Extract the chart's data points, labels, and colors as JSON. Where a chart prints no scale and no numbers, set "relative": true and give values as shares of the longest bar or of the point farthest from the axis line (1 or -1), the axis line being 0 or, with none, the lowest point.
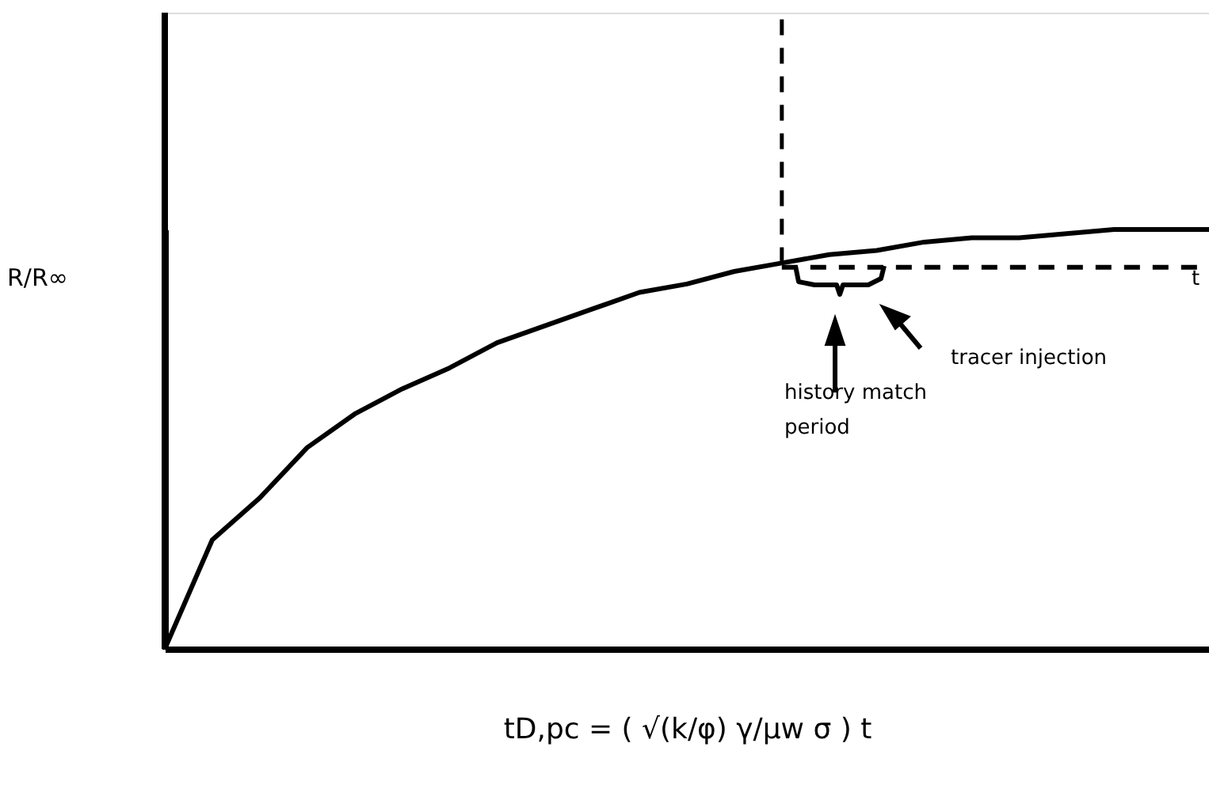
{
  "chart_data": {
    "type": "line",
    "relative": true,
    "xlabel": "tD,pc = ( √(k/φ) γ/μw σ ) t",
    "ylabel": "R/R∞",
    "categories": [
      null,
      null,
      null,
      null,
      null,
      null,
      null,
      null,
      null,
      null,
      null,
      null,
      null,
      null,
      null,
      null,
      null,
      null,
      null,
      null,
      null,
      null,
      null
    ],
    "series": [
      {
        "color": "#000000",
        "values": [
          0,
          0.26,
          0.36,
          0.48,
          0.56,
          0.62,
          0.67,
          0.73,
          0.77,
          0.81,
          0.85,
          0.87,
          0.9,
          0.92,
          0.94,
          0.95,
          0.97,
          0.98,
          0.98,
          0.99,
          1,
          1,
          1
        ]
      },
      {
        "type": "line",
        "line_style": "dashed",
        "color": "#000000",
        "values": [
          null,
          null,
          null,
          null,
          null,
          null,
          null,
          null,
          null,
          null,
          null,
          null,
          null,
          0.91,
          0.91,
          0.91,
          0.91,
          0.91,
          0.91,
          0.91,
          0.91,
          0.91,
          0.91
        ]
      }
    ],
    "annotations": [
      "t",
      "tracer injection",
      "history match\nperiod"
    ],
    "grid": false,
    "tick_labels": false,
    "marker": "none",
    "line_style": "solid"
  }
}
